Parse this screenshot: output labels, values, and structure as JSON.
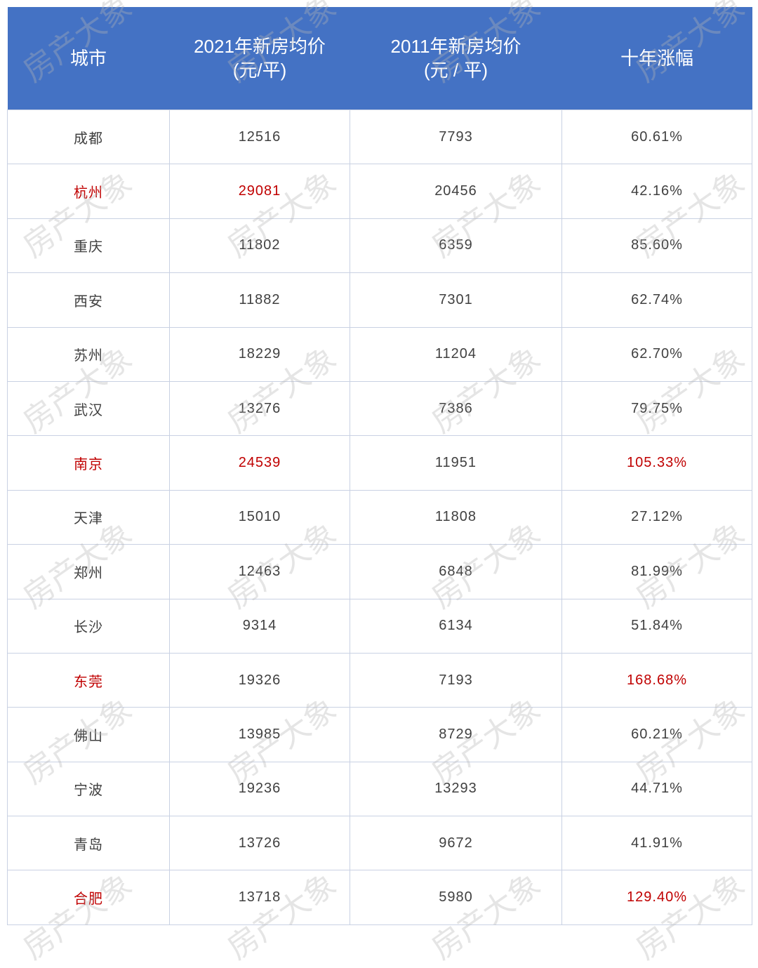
{
  "watermark": "房产大象",
  "colors": {
    "header_bg": "#4472c4",
    "highlight": "#c00000",
    "text": "#404040"
  },
  "chart_data": {
    "type": "table",
    "columns": [
      "城市",
      "2021年新房均价\n(元/平)",
      "2011年新房均价\n(元 / 平)",
      "十年涨幅"
    ],
    "header_lines": [
      [
        "城市"
      ],
      [
        "2021年新房均价",
        "(元/平)"
      ],
      [
        "2011年新房均价",
        "(元 / 平)"
      ],
      [
        "十年涨幅"
      ]
    ],
    "rows": [
      {
        "city": "成都",
        "p2021": "12516",
        "p2011": "7793",
        "growth": "60.61%",
        "red": []
      },
      {
        "city": "杭州",
        "p2021": "29081",
        "p2011": "20456",
        "growth": "42.16%",
        "red": [
          "city",
          "p2021"
        ]
      },
      {
        "city": "重庆",
        "p2021": "11802",
        "p2011": "6359",
        "growth": "85.60%",
        "red": []
      },
      {
        "city": "西安",
        "p2021": "11882",
        "p2011": "7301",
        "growth": "62.74%",
        "red": []
      },
      {
        "city": "苏州",
        "p2021": "18229",
        "p2011": "11204",
        "growth": "62.70%",
        "red": []
      },
      {
        "city": "武汉",
        "p2021": "13276",
        "p2011": "7386",
        "growth": "79.75%",
        "red": []
      },
      {
        "city": "南京",
        "p2021": "24539",
        "p2011": "11951",
        "growth": "105.33%",
        "red": [
          "city",
          "p2021",
          "growth"
        ]
      },
      {
        "city": "天津",
        "p2021": "15010",
        "p2011": "11808",
        "growth": "27.12%",
        "red": []
      },
      {
        "city": "郑州",
        "p2021": "12463",
        "p2011": "6848",
        "growth": "81.99%",
        "red": []
      },
      {
        "city": "长沙",
        "p2021": "9314",
        "p2011": "6134",
        "growth": "51.84%",
        "red": []
      },
      {
        "city": "东莞",
        "p2021": "19326",
        "p2011": "7193",
        "growth": "168.68%",
        "red": [
          "city",
          "growth"
        ]
      },
      {
        "city": "佛山",
        "p2021": "13985",
        "p2011": "8729",
        "growth": "60.21%",
        "red": []
      },
      {
        "city": "宁波",
        "p2021": "19236",
        "p2011": "13293",
        "growth": "44.71%",
        "red": []
      },
      {
        "city": "青岛",
        "p2021": "13726",
        "p2011": "9672",
        "growth": "41.91%",
        "red": []
      },
      {
        "city": "合肥",
        "p2021": "13718",
        "p2011": "5980",
        "growth": "129.40%",
        "red": [
          "city",
          "growth"
        ]
      }
    ]
  }
}
